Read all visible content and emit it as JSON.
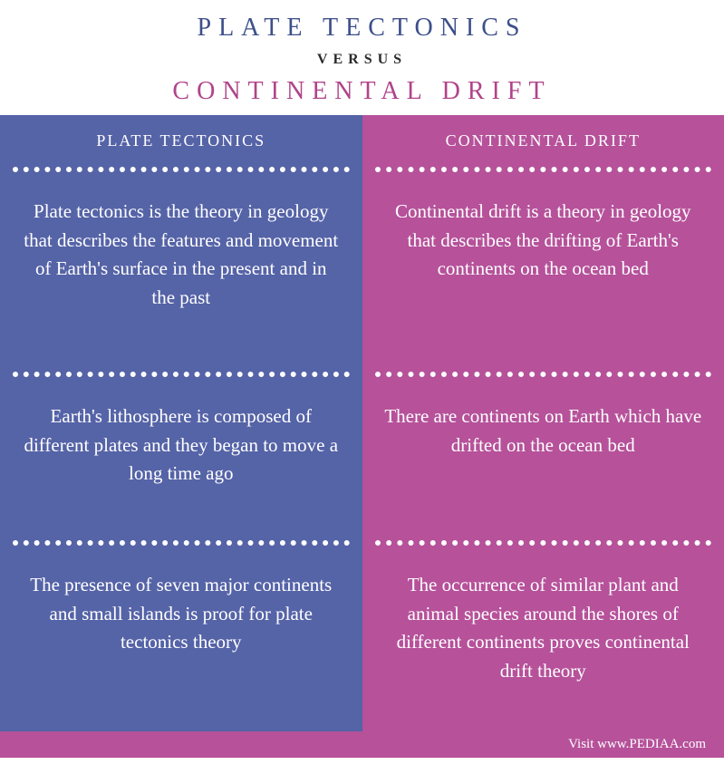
{
  "header": {
    "title1": "PLATE TECTONICS",
    "title1_color": "#3d4f8a",
    "versus": "VERSUS",
    "versus_color": "#2a2a2a",
    "title2": "CONTINENTAL DRIFT",
    "title2_color": "#b0448a"
  },
  "columns": {
    "left": {
      "bg_color": "#5563a7",
      "header": "PLATE TECTONICS",
      "rows": [
        "Plate tectonics is the theory in geology that describes the features and movement of Earth's surface in the present and in the past",
        "Earth's lithosphere is composed of different plates and they began to move a long time ago",
        "The presence of seven major continents and small islands is proof for plate tectonics theory"
      ]
    },
    "right": {
      "bg_color": "#b6519a",
      "header": "CONTINENTAL DRIFT",
      "rows": [
        "Continental drift is a theory in geology that describes the drifting of Earth's continents on the ocean bed",
        "There are continents on Earth which have drifted on the ocean bed",
        "The occurrence of similar plant and animal species around the shores of different continents proves continental drift theory"
      ]
    }
  },
  "footer": {
    "text": "Visit www.PEDIAA.com",
    "bg_color": "#b6519a"
  },
  "row_heights": [
    "220px",
    "180px",
    "205px"
  ]
}
